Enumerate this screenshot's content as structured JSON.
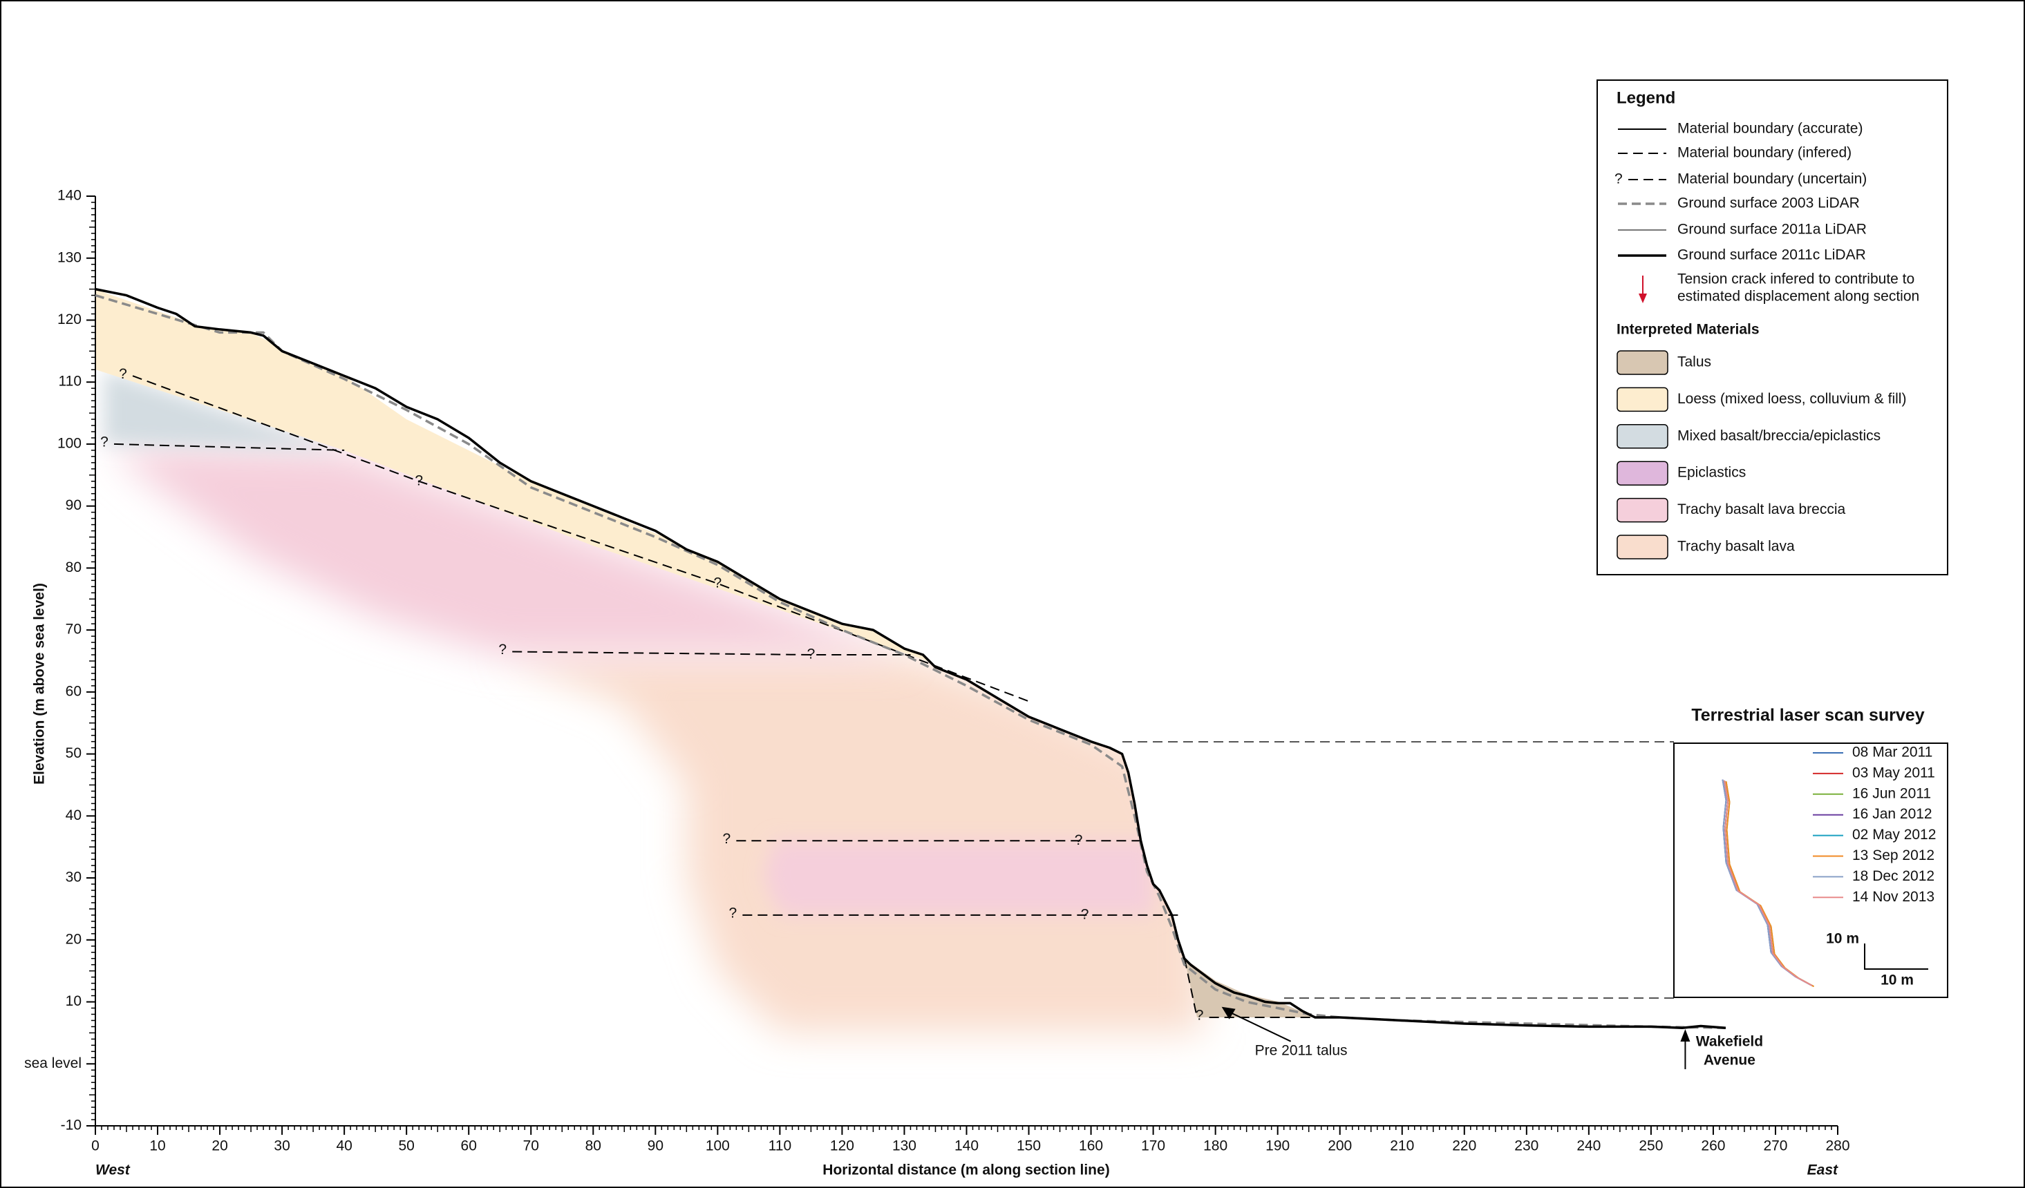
{
  "chart_data": {
    "type": "cross-section",
    "xlabel": "Horizontal distance (m along section line)",
    "ylabel": "Elevation (m above sea level)",
    "x_start_label": "West",
    "x_end_label": "East",
    "xlim": [
      0,
      280
    ],
    "xticks": [
      0,
      10,
      20,
      30,
      40,
      50,
      60,
      70,
      80,
      90,
      100,
      110,
      120,
      130,
      140,
      150,
      160,
      170,
      180,
      190,
      200,
      210,
      220,
      230,
      240,
      250,
      260,
      270,
      280
    ],
    "ylim": [
      -10,
      140
    ],
    "yticks": [
      -10,
      {
        "value": 0,
        "label": "sea level"
      },
      10,
      20,
      30,
      40,
      50,
      60,
      70,
      80,
      90,
      100,
      110,
      120,
      130,
      140
    ],
    "series": [
      {
        "style": "dashed-gray",
        "x": [
          0,
          10,
          20,
          27,
          30,
          40,
          50,
          60,
          70,
          80,
          90,
          100,
          110,
          120,
          130,
          140,
          150,
          160,
          165,
          167,
          169,
          171,
          173,
          175,
          180,
          185,
          190,
          195,
          200,
          210,
          230,
          250,
          262
        ],
        "values": [
          124,
          121,
          118,
          118,
          115,
          110.5,
          105.5,
          100,
          93,
          89,
          85,
          80.5,
          74.5,
          70,
          66,
          61,
          55.5,
          51.5,
          48,
          40,
          31,
          27,
          22,
          16,
          12,
          10,
          9,
          8,
          7.5,
          7,
          6.5,
          6,
          5.8
        ]
      },
      {
        "style": "thick",
        "x": [
          0,
          5,
          10,
          13,
          16,
          20,
          25,
          27,
          30,
          35,
          40,
          45,
          50,
          55,
          60,
          65,
          70,
          75,
          80,
          85,
          90,
          95,
          100,
          105,
          110,
          115,
          120,
          125,
          130,
          133,
          135,
          140,
          145,
          150,
          155,
          160,
          163,
          165,
          166,
          167,
          168,
          169,
          170,
          171,
          172,
          173,
          174,
          175,
          176,
          178,
          180,
          183,
          185,
          188,
          190,
          192,
          194,
          196,
          200,
          210,
          220,
          230,
          240,
          250,
          255,
          258,
          262
        ],
        "values": [
          125,
          124,
          122,
          121,
          119,
          118.5,
          118,
          117.5,
          115,
          113,
          111,
          109,
          106,
          104,
          101,
          97,
          94,
          92,
          90,
          88,
          86,
          83,
          81,
          78,
          75,
          73,
          71,
          70,
          67,
          66,
          64,
          62,
          59,
          56,
          54,
          52,
          51,
          50,
          47,
          42,
          36,
          32,
          29,
          28,
          26,
          24,
          20,
          17,
          16,
          14.5,
          13,
          11.5,
          11,
          10,
          9.8,
          9.8,
          8.5,
          7.5,
          7.5,
          7,
          6.5,
          6.2,
          6,
          6,
          5.8,
          6.1,
          5.8
        ]
      }
    ],
    "boundaries": [
      {
        "style": "uncertain",
        "label": "?",
        "x": [
          6,
          52,
          100,
          150
        ],
        "y": [
          111,
          94,
          77.5,
          58.5
        ]
      },
      {
        "style": "uncertain",
        "label": "?",
        "x": [
          3,
          40
        ],
        "y": [
          100,
          99
        ]
      },
      {
        "style": "uncertain",
        "label": "?",
        "x": [
          67,
          115,
          131
        ],
        "y": [
          66.5,
          66,
          66
        ]
      },
      {
        "style": "uncertain",
        "label": "?",
        "x": [
          103,
          158,
          168
        ],
        "y": [
          36,
          36,
          36
        ]
      },
      {
        "style": "uncertain",
        "label": "?",
        "x": [
          104,
          159,
          174
        ],
        "y": [
          24,
          24,
          24
        ]
      },
      {
        "style": "uncertain",
        "label": "?",
        "x": [
          179,
          196
        ],
        "y": [
          7.5,
          7.5
        ]
      }
    ],
    "annotations": [
      {
        "text": "Pre 2011 talus",
        "x": 181,
        "y": 9.2
      },
      {
        "text": [
          "Wakefield",
          "Avenue"
        ],
        "x": 255.5,
        "y": 5.6
      }
    ],
    "legend": {
      "title": "Legend",
      "entries": [
        {
          "label": "Material boundary (accurate)",
          "style": "solid"
        },
        {
          "label": "Material boundary (infered)",
          "style": "dashed"
        },
        {
          "label": "Material boundary (uncertain)",
          "style": "uncertain",
          "mark": "?"
        },
        {
          "label": "Ground surface 2003 LiDAR",
          "style": "dashed-gray"
        },
        {
          "label": "Ground surface 2011a LiDAR",
          "style": "thin-gray"
        },
        {
          "label": "Ground surface 2011c LiDAR",
          "style": "thick"
        },
        {
          "label": [
            "Tension crack infered to contribute to",
            "estimated displacement along section"
          ],
          "style": "arrow",
          "color": "#d0112b"
        }
      ],
      "materials_title": "Interpreted Materials",
      "materials": [
        {
          "name": "Talus",
          "color": "#d8c7b2"
        },
        {
          "name": "Loess (mixed loess, colluvium & fill)",
          "color": "#fdedcf"
        },
        {
          "name": "Mixed basalt/breccia/epiclastics",
          "color": "#d3dce1"
        },
        {
          "name": "Epiclastics",
          "color": "#dfb7dc"
        },
        {
          "name": "Trachy basalt lava breccia",
          "color": "#f5cfdb"
        },
        {
          "name": "Trachy basalt lava",
          "color": "#f9ddcd"
        }
      ]
    },
    "tls": {
      "title": "Terrestrial laser scan survey",
      "dates": [
        {
          "name": "08 Mar 2011",
          "color": "#3a6fb4"
        },
        {
          "name": "03 May 2011",
          "color": "#d42a2a"
        },
        {
          "name": "16 Jun 2011",
          "color": "#7ab03a"
        },
        {
          "name": "16 Jan 2012",
          "color": "#6a3fa0"
        },
        {
          "name": "02 May 2012",
          "color": "#1aa0c0"
        },
        {
          "name": "13 Sep 2012",
          "color": "#f08a24"
        },
        {
          "name": "18 Dec 2012",
          "color": "#8aa0c8"
        },
        {
          "name": "14 Nov 2013",
          "color": "#e88a8a"
        }
      ],
      "scale_labels": [
        "10 m",
        "10 m"
      ]
    }
  }
}
